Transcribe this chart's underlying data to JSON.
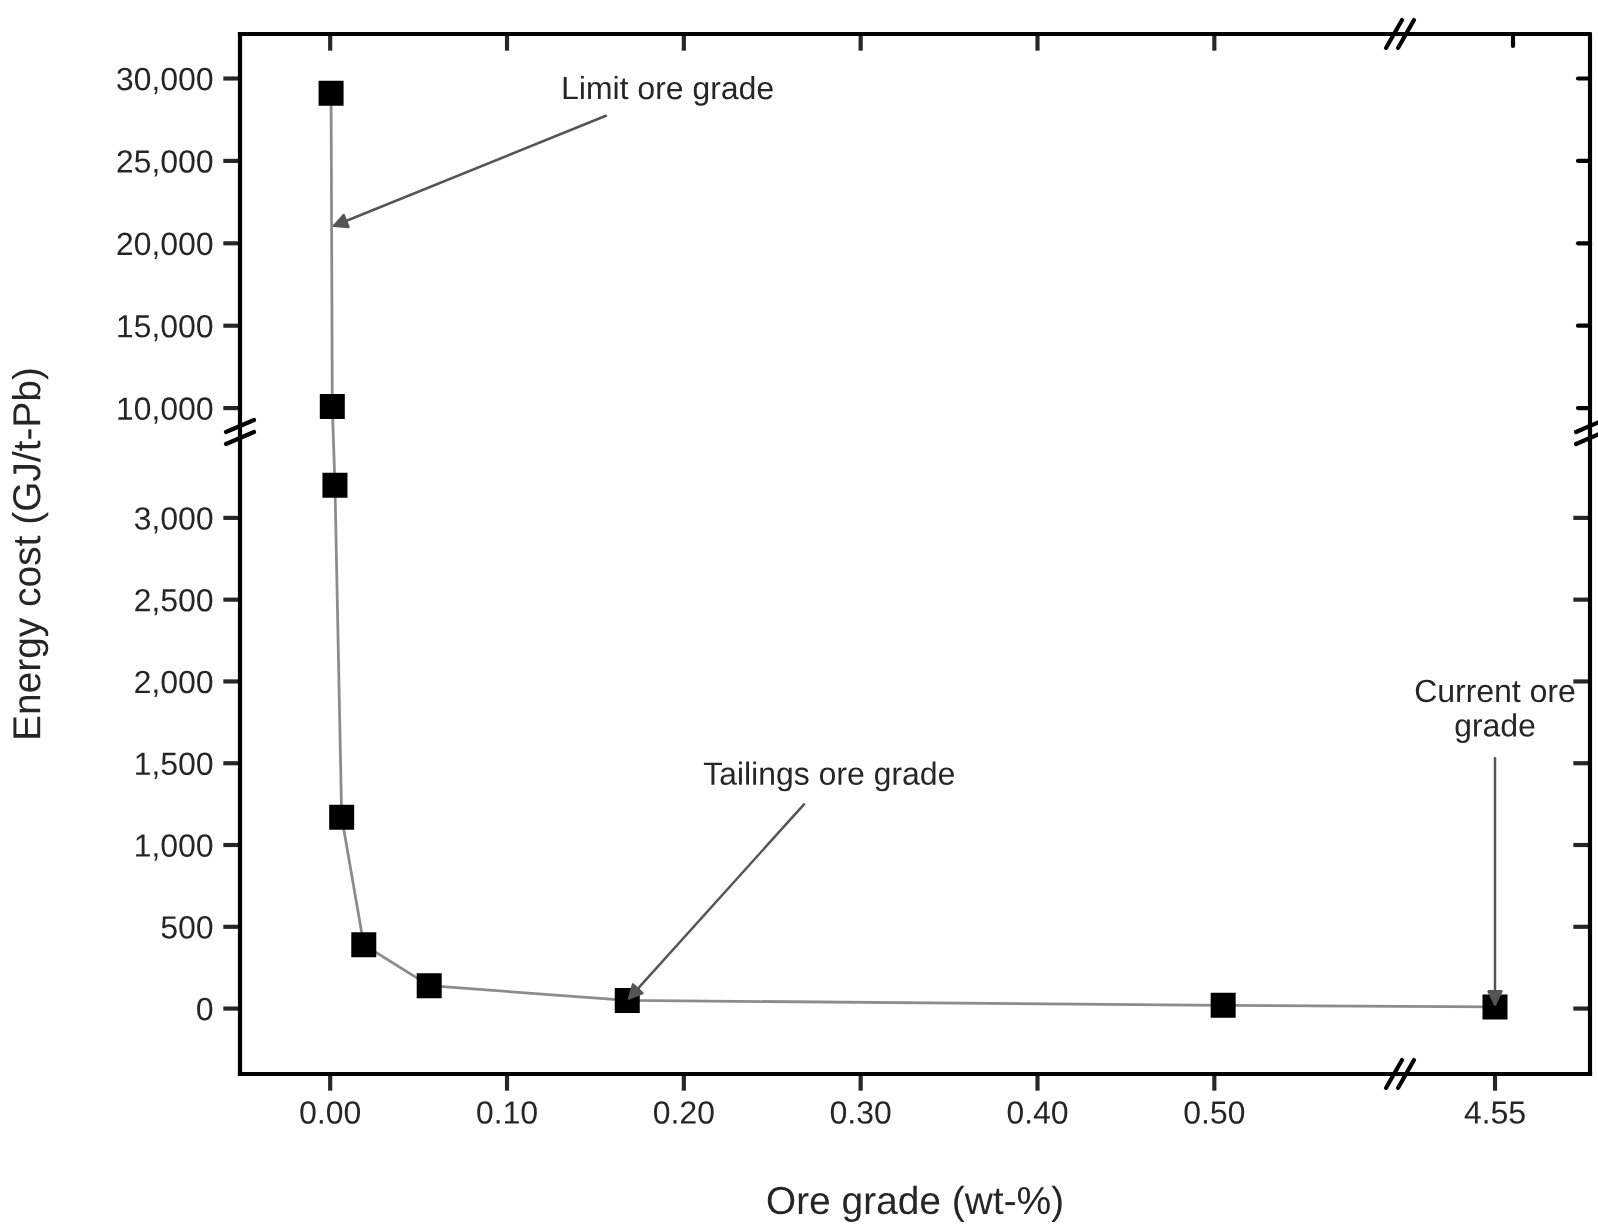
{
  "chart_data": [
    {
      "type": "line",
      "ylabel": "Energy cost (GJ/t-Pb)",
      "xlim": [
        -0.051,
        0.605
      ],
      "ylim": [
        8550,
        32700
      ],
      "xticks": [
        0,
        0.1,
        0.2,
        0.3,
        0.4,
        0.5
      ],
      "yticks": [
        {
          "value": 10000,
          "label": "10,000"
        },
        {
          "value": 15000,
          "label": "15,000"
        },
        {
          "value": 20000,
          "label": "20,000"
        },
        {
          "value": 25000,
          "label": "25,000"
        },
        {
          "value": 30000,
          "label": "30,000"
        }
      ],
      "tick_labels": "y",
      "marker": "square",
      "series": [
        {
          "color": "#000000",
          "x": [
            0.0005,
            0.0012
          ],
          "values": [
            29100,
            10100
          ]
        }
      ],
      "annotations": [
        {
          "text": "Limit ore grade",
          "x": 0.0008,
          "y": 21000
        }
      ]
    },
    {
      "type": "line",
      "xlabel": "Ore grade (wt-%)",
      "xlim": [
        -0.051,
        0.605
      ],
      "ylim": [
        -400,
        3525
      ],
      "xticks": [
        {
          "value": 0,
          "label": "0.00"
        },
        {
          "value": 0.1,
          "label": "0.10"
        },
        {
          "value": 0.2,
          "label": "0.20"
        },
        {
          "value": 0.3,
          "label": "0.30"
        },
        {
          "value": 0.4,
          "label": "0.40"
        },
        {
          "value": 0.5,
          "label": "0.50"
        }
      ],
      "yticks": [
        0,
        500,
        {
          "value": 1000,
          "label": "1,000"
        },
        {
          "value": 1500,
          "label": "1,500"
        },
        {
          "value": 2000,
          "label": "2,000"
        },
        {
          "value": 2500,
          "label": "2,500"
        },
        {
          "value": 3000,
          "label": "3,000"
        }
      ],
      "marker": "square",
      "series": [
        {
          "color": "#000000",
          "x": [
            0.0027,
            0.0065,
            0.019,
            0.056,
            0.168,
            0.505
          ],
          "values": [
            3200,
            1170,
            390,
            140,
            50,
            20
          ]
        }
      ],
      "annotations": [
        {
          "text": "Tailings ore grade",
          "x": 0.168,
          "y": 50
        }
      ]
    },
    {
      "type": "line",
      "categories": [
        "4.55"
      ],
      "ylim": [
        -400,
        3525
      ],
      "yticks": [
        0,
        500,
        1000,
        1500,
        2000,
        2500,
        3000
      ],
      "tick_labels": "x",
      "marker": "square",
      "series": [
        {
          "color": "#000000",
          "values": [
            10
          ]
        }
      ],
      "annotations": [
        {
          "text": "Current ore\ngrade",
          "x": "4.55",
          "y": 10
        }
      ]
    }
  ]
}
